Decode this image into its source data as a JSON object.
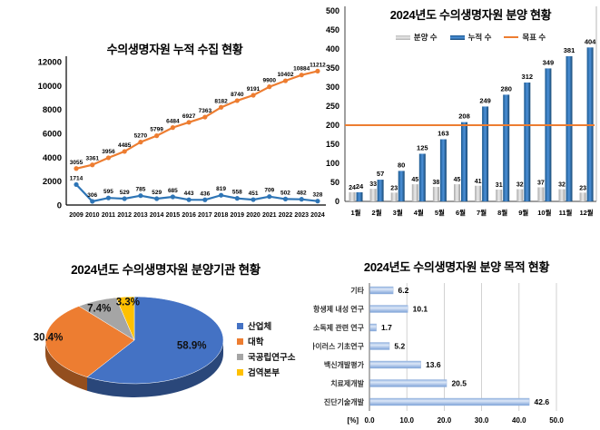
{
  "chart_data": [
    {
      "id": "cumulative-collection",
      "type": "line",
      "title": "수의생명자원 누적 수집 현황",
      "categories": [
        "2009",
        "2010",
        "2011",
        "2012",
        "2013",
        "2014",
        "2015",
        "2016",
        "2017",
        "2018",
        "2019",
        "2020",
        "2021",
        "2022",
        "2023",
        "2024"
      ],
      "series": [
        {
          "color": "#2E75B6",
          "values": [
            1714,
            306,
            595,
            529,
            785,
            529,
            685,
            443,
            436,
            819,
            558,
            451,
            709,
            502,
            482,
            328
          ]
        },
        {
          "color": "#ED7D31",
          "values": [
            3055,
            3361,
            3956,
            4485,
            5270,
            5799,
            6484,
            6927,
            7363,
            8182,
            8740,
            9191,
            9900,
            10402,
            10884,
            11212
          ]
        }
      ],
      "ylim": [
        0,
        12000
      ],
      "ytick_step": 2000,
      "grid": false,
      "legend_position": "none"
    },
    {
      "id": "distribution-monthly",
      "type": "bar",
      "title": "2024년도 수의생명자원 분양 현황",
      "categories": [
        "1월",
        "2월",
        "3월",
        "4월",
        "5월",
        "6월",
        "7월",
        "8월",
        "9월",
        "10월",
        "11월",
        "12월"
      ],
      "series": [
        {
          "name": "분양 수",
          "type": "bar",
          "color": "#C9C9C9",
          "values": [
            24,
            33,
            23,
            45,
            38,
            45,
            41,
            31,
            32,
            37,
            32,
            23
          ]
        },
        {
          "name": "누적 수",
          "type": "bar",
          "color": "#2E75B6",
          "values": [
            24,
            57,
            80,
            125,
            163,
            208,
            249,
            280,
            312,
            349,
            381,
            404
          ]
        },
        {
          "name": "목표 수",
          "type": "line",
          "color": "#ED7D31",
          "value": 200
        }
      ],
      "ylim": [
        0,
        500
      ],
      "ytick_step": 50,
      "grid": false,
      "legend_position": "top"
    },
    {
      "id": "institution-share",
      "type": "pie",
      "title": "2024년도 수의생명자원 분양기관 현황",
      "labels": [
        "산업체",
        "대학",
        "국공립연구소",
        "검역본부"
      ],
      "values": [
        58.9,
        30.4,
        7.4,
        3.3
      ],
      "value_labels": [
        "58.9%",
        "30.4%",
        "7.4%",
        "3.3%"
      ],
      "colors": [
        "#4472C4",
        "#ED7D31",
        "#A5A5A5",
        "#FFC000"
      ],
      "effect": "3d",
      "legend_position": "right"
    },
    {
      "id": "purpose-share",
      "type": "bar",
      "orientation": "horizontal",
      "title": "2024년도 수의생명자원 분양 목적 현황",
      "categories": [
        "기타",
        "항생제 내성 연구",
        "소독제 관련 연구",
        "바이러스 기초연구",
        "백신개발평가",
        "치료제개발",
        "진단기술개발"
      ],
      "values": [
        6.2,
        10.1,
        1.7,
        5.2,
        13.6,
        20.5,
        42.6
      ],
      "bar_color": "#A9C4E9",
      "xlabel": "[%]",
      "xlim": [
        0,
        50
      ],
      "xticklabels": [
        "0.0",
        "10.0",
        "20.0",
        "30.0",
        "40.0",
        "50.0"
      ],
      "grid": true
    }
  ]
}
